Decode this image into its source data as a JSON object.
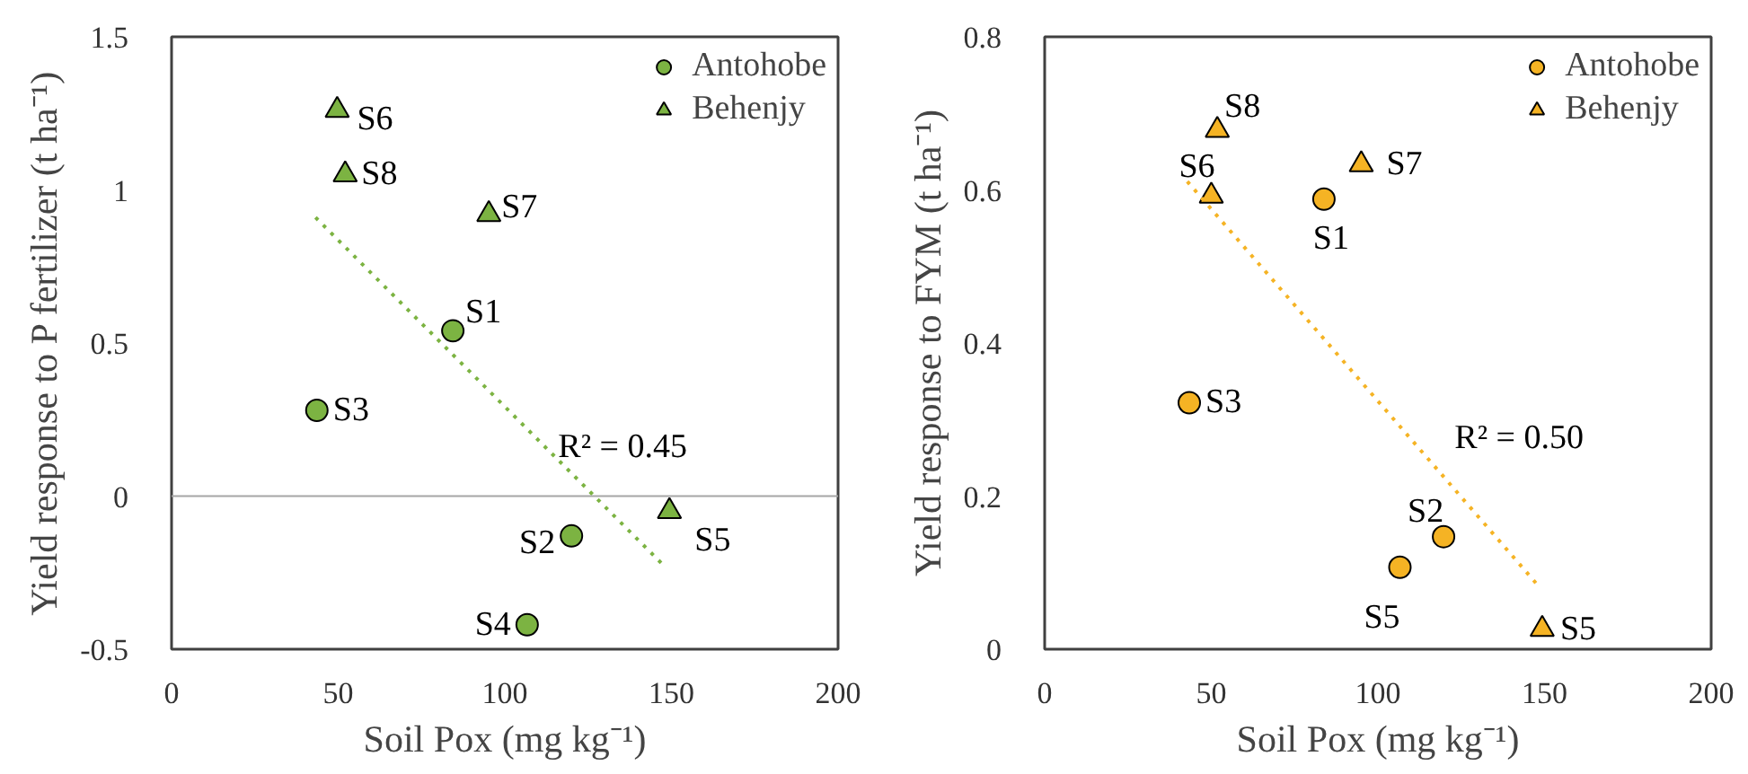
{
  "chart_data": [
    {
      "type": "scatter",
      "xlabel": "Soil Pox (mg kg⁻¹)",
      "ylabel": "Yield response to P fertilizer (t ha⁻¹)",
      "xlim": [
        0,
        200
      ],
      "ylim": [
        -0.5,
        1.5
      ],
      "xticks": [
        0,
        50,
        100,
        150,
        200
      ],
      "yticks": [
        -0.5,
        0,
        0.5,
        1,
        1.5
      ],
      "grid": false,
      "legend": "top right",
      "ref_lines": [
        {
          "axis": "y",
          "value": 0,
          "color": "#a6a6a6"
        }
      ],
      "series": [
        {
          "name": "Antohobe",
          "color": "#7cb342",
          "marker": "circle",
          "x": [
            84.4,
            43.6,
            120,
            106.7
          ],
          "values": [
            0.54,
            0.28,
            -0.13,
            -0.42
          ]
        },
        {
          "name": "Behenjy",
          "color": "#7cb342",
          "marker": "triangle",
          "x": [
            49.7,
            52.1,
            95.2,
            149.4
          ],
          "values": [
            1.26,
            1.05,
            0.92,
            -0.05
          ]
        },
        {
          "type": "line",
          "color": "#7cb342",
          "line_style": "dotted",
          "x": [
            43.2,
            148
          ],
          "values": [
            0.91,
            -0.23
          ]
        }
      ],
      "annotations": [
        {
          "text": "S1",
          "x": 84.4,
          "y": 0.54
        },
        {
          "text": "S3",
          "x": 43.6,
          "y": 0.28
        },
        {
          "text": "S2",
          "x": 120,
          "y": -0.13
        },
        {
          "text": "S4",
          "x": 106.7,
          "y": -0.42
        },
        {
          "text": "S6",
          "x": 49.7,
          "y": 1.26
        },
        {
          "text": "S8",
          "x": 52.1,
          "y": 1.05
        },
        {
          "text": "S7",
          "x": 95.2,
          "y": 0.92
        },
        {
          "text": "S5",
          "x": 149.4,
          "y": -0.05
        },
        "R² = 0.45"
      ]
    },
    {
      "type": "scatter",
      "xlabel": "Soil Pox (mg kg⁻¹)",
      "ylabel": "Yield response to FYM (t ha⁻¹)",
      "xlim": [
        0,
        200
      ],
      "ylim": [
        0,
        0.8
      ],
      "xticks": [
        0,
        50,
        100,
        150,
        200
      ],
      "yticks": [
        0,
        0.2,
        0.4,
        0.6,
        0.8
      ],
      "grid": false,
      "legend": "top right",
      "series": [
        {
          "name": "Antohobe",
          "color": "#f5b324",
          "marker": "circle",
          "x": [
            83.8,
            43.4,
            119.7,
            106.6
          ],
          "values": [
            0.588,
            0.322,
            0.147,
            0.107
          ]
        },
        {
          "name": "Behenjy",
          "color": "#f5b324",
          "marker": "triangle",
          "x": [
            51.8,
            50,
            95,
            149.3
          ],
          "values": [
            0.678,
            0.592,
            0.633,
            0.026
          ]
        },
        {
          "type": "line",
          "color": "#f5b324",
          "line_style": "dotted",
          "x": [
            42.8,
            148.3
          ],
          "values": [
            0.611,
            0.082
          ]
        }
      ],
      "annotations": [
        {
          "text": "S1",
          "x": 83.8,
          "y": 0.588
        },
        {
          "text": "S3",
          "x": 43.4,
          "y": 0.322
        },
        {
          "text": "S2",
          "x": 119.7,
          "y": 0.147
        },
        {
          "text": "S5",
          "x": 106.6,
          "y": 0.107
        },
        {
          "text": "S8",
          "x": 51.8,
          "y": 0.678
        },
        {
          "text": "S6",
          "x": 50,
          "y": 0.592
        },
        {
          "text": "S7",
          "x": 95,
          "y": 0.633
        },
        {
          "text": "S5",
          "x": 149.3,
          "y": 0.026
        },
        "R² = 0.50"
      ]
    }
  ]
}
